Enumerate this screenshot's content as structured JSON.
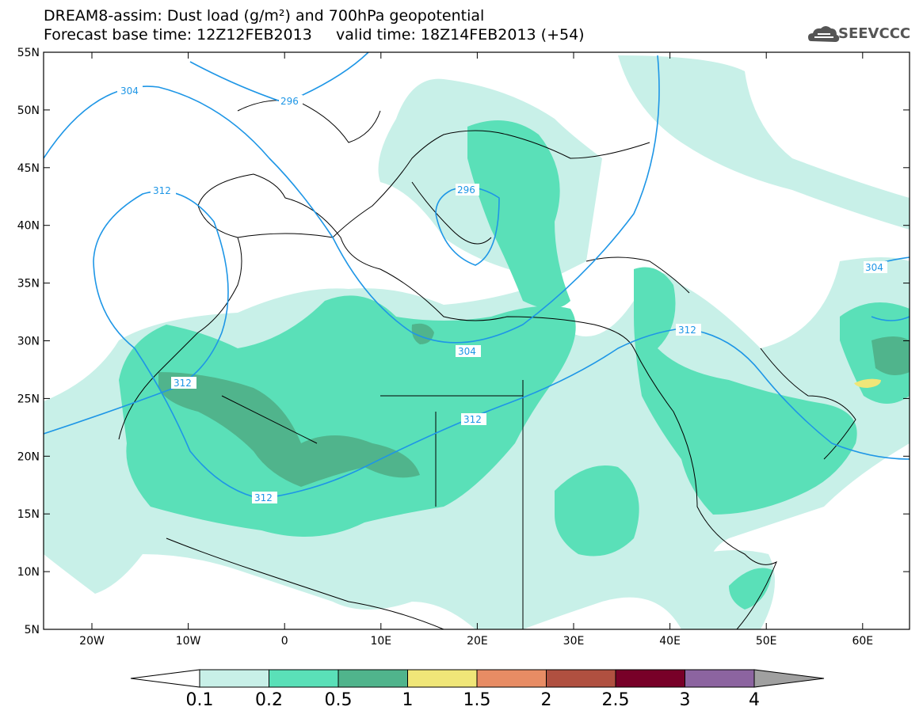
{
  "header": {
    "title_line1": "DREAM8-assim: Dust load (g/m²) and 700hPa geopotential",
    "title_line2": "Forecast base time: 12Z12FEB2013     valid time: 18Z14FEB2013 (+54)",
    "logo_text": "SEEVCCC",
    "logo_icon": "cloud-icon"
  },
  "axes": {
    "lat_labels": [
      "55N",
      "50N",
      "45N",
      "40N",
      "35N",
      "30N",
      "25N",
      "20N",
      "15N",
      "10N",
      "5N"
    ],
    "lon_labels": [
      "20W",
      "10W",
      "0",
      "10E",
      "20E",
      "30E",
      "40E",
      "50E",
      "60E"
    ]
  },
  "colorbar": {
    "labels": [
      "0.1",
      "0.2",
      "0.5",
      "1",
      "1.5",
      "2",
      "2.5",
      "3",
      "4"
    ],
    "colors": [
      "#c8f0e8",
      "#5ae0b8",
      "#50b48c",
      "#f0e678",
      "#e88c64",
      "#b05040",
      "#780028",
      "#8c64a0",
      "#a0a0a0"
    ]
  },
  "contours": {
    "labels": [
      "304",
      "296",
      "312",
      "296",
      "304",
      "304",
      "312",
      "312",
      "312",
      "312"
    ]
  },
  "legend_colors": {
    "land_bg": "#ffffff",
    "coast": "#000000",
    "contour_line": "#1e96e6"
  }
}
